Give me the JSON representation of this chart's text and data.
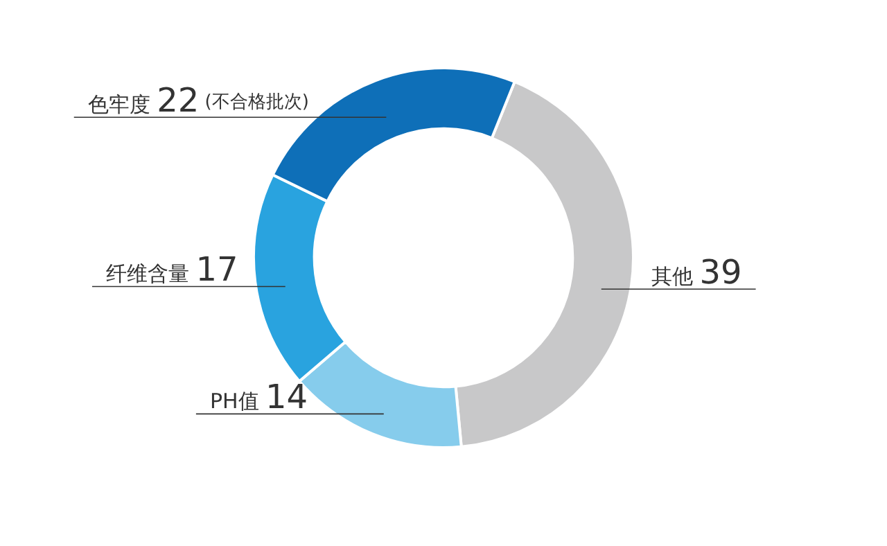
{
  "chart_data": {
    "type": "donut",
    "categories": [
      "其他",
      "PH值",
      "纤维含量",
      "色牢度"
    ],
    "values": [
      39,
      14,
      17,
      22
    ],
    "colors": [
      "#c8c8c9",
      "#86ccec",
      "#29a3df",
      "#0e6fb8"
    ],
    "data_labels": true,
    "annotations": [
      "(不合格批次)"
    ]
  }
}
